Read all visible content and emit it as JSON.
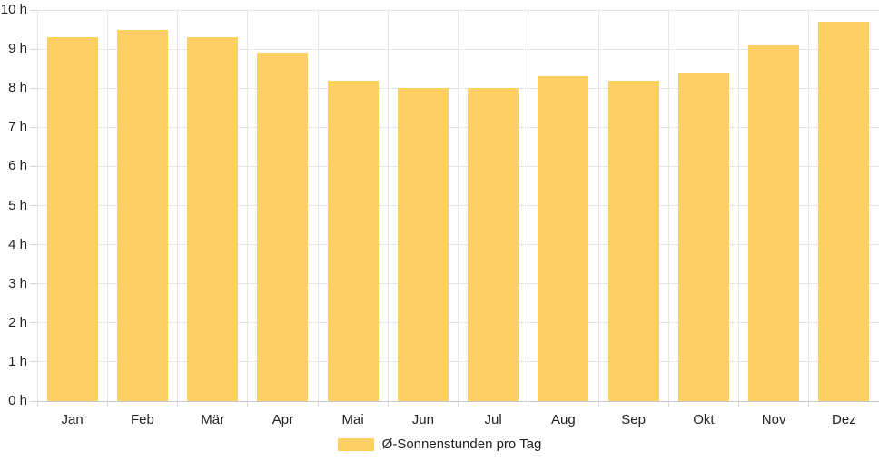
{
  "chart_data": {
    "type": "bar",
    "title": "",
    "xlabel": "",
    "ylabel": "",
    "categories": [
      "Jan",
      "Feb",
      "Mär",
      "Apr",
      "Mai",
      "Jun",
      "Jul",
      "Aug",
      "Sep",
      "Okt",
      "Nov",
      "Dez"
    ],
    "values": [
      9.3,
      9.5,
      9.3,
      8.9,
      8.2,
      8.0,
      8.0,
      8.3,
      8.2,
      8.4,
      9.1,
      9.7
    ],
    "series_name": "Ø-Sonnenstunden pro Tag",
    "unit": "h",
    "ylim": [
      0,
      10
    ],
    "ytick_step": 1,
    "ytick_labels": [
      "0 h",
      "1 h",
      "2 h",
      "3 h",
      "4 h",
      "5 h",
      "6 h",
      "7 h",
      "8 h",
      "9 h",
      "10 h"
    ],
    "grid": true,
    "legend_position": "bottom"
  },
  "colors": {
    "bar": "#fcd063",
    "grid": "#e6e6e6",
    "axis": "#c9c9c9",
    "tick": "#d4d4d4",
    "text": "#222222"
  }
}
